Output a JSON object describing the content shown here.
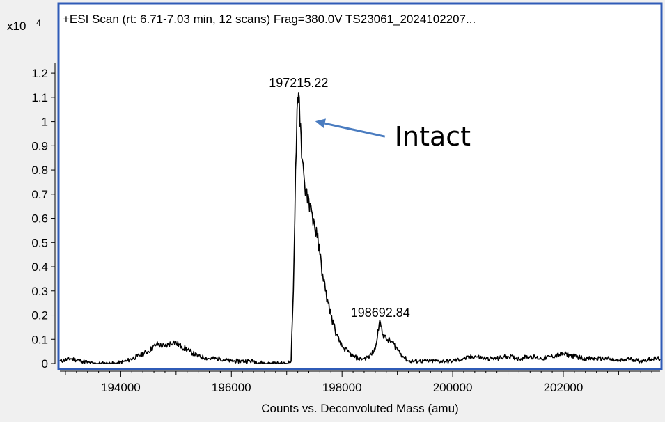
{
  "chart_data": {
    "type": "line",
    "title": "+ESI Scan (rt: 6.71-7.03 min, 12 scans) Frag=380.0V TS23061_2024102207...",
    "xlabel": "Counts vs. Deconvoluted Mass (amu)",
    "ylabel": "",
    "y_multiplier_label": "x10",
    "y_multiplier_exponent": "4",
    "xlim": [
      192900,
      203750
    ],
    "ylim": [
      0,
      1.35
    ],
    "x_ticks": [
      194000,
      196000,
      198000,
      200000,
      202000
    ],
    "x_tick_labels": [
      "194000",
      "196000",
      "198000",
      "200000",
      "202000"
    ],
    "y_ticks": [
      0,
      0.1,
      0.2,
      0.3,
      0.4,
      0.5,
      0.6,
      0.7,
      0.8,
      0.9,
      1,
      1.1,
      1.2
    ],
    "y_tick_labels": [
      "0",
      "0.1",
      "0.2",
      "0.3",
      "0.4",
      "0.5",
      "0.6",
      "0.7",
      "0.8",
      "0.9",
      "1",
      "1.1",
      "1.2"
    ],
    "line_color": "#000000",
    "frame_color": "#2f5bb7",
    "grid": false,
    "series": [
      {
        "x": [
          192900,
          193100,
          193300,
          193500,
          193700,
          193900,
          194100,
          194300,
          194500,
          194650,
          194800,
          194950,
          195100,
          195250,
          195400,
          195600,
          195800,
          196000,
          196200,
          196400,
          196600,
          196800,
          197000,
          197080,
          197120,
          197160,
          197200,
          197215,
          197240,
          197270,
          197310,
          197350,
          197400,
          197450,
          197500,
          197550,
          197600,
          197650,
          197700,
          197750,
          197800,
          197850,
          197900,
          197950,
          198000,
          198100,
          198200,
          198300,
          198400,
          198500,
          198600,
          198650,
          198693,
          198740,
          198800,
          198900,
          199000,
          199100,
          199200,
          199400,
          199600,
          199800,
          200000,
          200200,
          200400,
          200600,
          200800,
          201000,
          201200,
          201400,
          201600,
          201800,
          202000,
          202200,
          202400,
          202600,
          202800,
          203000,
          203200,
          203400,
          203600,
          203750
        ],
        "y": [
          0.01,
          0.02,
          0.01,
          0.0,
          0.0,
          0.0,
          0.01,
          0.03,
          0.05,
          0.08,
          0.07,
          0.09,
          0.07,
          0.05,
          0.03,
          0.02,
          0.02,
          0.01,
          0.01,
          0.01,
          0.0,
          0.0,
          0.0,
          0.01,
          0.3,
          0.8,
          1.1,
          1.12,
          0.98,
          0.85,
          0.78,
          0.72,
          0.68,
          0.63,
          0.58,
          0.52,
          0.45,
          0.37,
          0.3,
          0.25,
          0.2,
          0.16,
          0.12,
          0.09,
          0.07,
          0.05,
          0.03,
          0.02,
          0.02,
          0.03,
          0.06,
          0.14,
          0.17,
          0.12,
          0.1,
          0.09,
          0.06,
          0.03,
          0.01,
          0.01,
          0.01,
          0.01,
          0.01,
          0.02,
          0.03,
          0.02,
          0.02,
          0.03,
          0.02,
          0.03,
          0.02,
          0.03,
          0.04,
          0.03,
          0.02,
          0.02,
          0.02,
          0.01,
          0.02,
          0.01,
          0.02,
          0.02
        ]
      }
    ],
    "peak_labels": [
      {
        "text": "197215.22",
        "x": 197215,
        "y": 1.12
      },
      {
        "text": "198692.84",
        "x": 198693,
        "y": 0.17
      }
    ],
    "annotation": {
      "text": "Intact",
      "target_x": 197240,
      "target_y": 1.03
    },
    "arrow_color": "#4a7cc0"
  }
}
